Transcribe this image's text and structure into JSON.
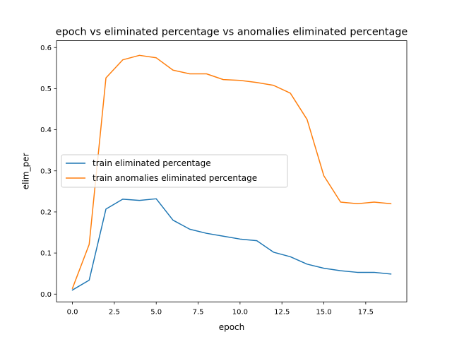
{
  "chart_data": {
    "type": "line",
    "title": "epoch vs eliminated percentage vs anomalies eliminated percentage",
    "xlabel": "epoch",
    "ylabel": "elim_per",
    "xlim": [
      -0.95,
      19.95
    ],
    "ylim": [
      -0.0188,
      0.6166
    ],
    "xticks": [
      0.0,
      2.5,
      5.0,
      7.5,
      10.0,
      12.5,
      15.0,
      17.5
    ],
    "xtick_labels": [
      "0.0",
      "2.5",
      "5.0",
      "7.5",
      "10.0",
      "12.5",
      "15.0",
      "17.5"
    ],
    "yticks": [
      0.0,
      0.1,
      0.2,
      0.3,
      0.4,
      0.5,
      0.6
    ],
    "ytick_labels": [
      "0.0",
      "0.1",
      "0.2",
      "0.3",
      "0.4",
      "0.5",
      "0.6"
    ],
    "grid": false,
    "legend_position": "center-left",
    "x": [
      0,
      1,
      2,
      3,
      4,
      5,
      6,
      7,
      8,
      9,
      10,
      11,
      12,
      13,
      14,
      15,
      16,
      17,
      18,
      19
    ],
    "series": [
      {
        "name": "train eliminated percentage",
        "color": "#1f77b4",
        "values": [
          0.01,
          0.034,
          0.207,
          0.231,
          0.228,
          0.232,
          0.18,
          0.158,
          0.148,
          0.141,
          0.134,
          0.13,
          0.102,
          0.091,
          0.073,
          0.063,
          0.057,
          0.053,
          0.053,
          0.049
        ]
      },
      {
        "name": "train anomalies eliminated percentage",
        "color": "#ff7f0e",
        "values": [
          0.014,
          0.121,
          0.526,
          0.57,
          0.581,
          0.575,
          0.545,
          0.536,
          0.536,
          0.522,
          0.52,
          0.515,
          0.508,
          0.489,
          0.425,
          0.288,
          0.224,
          0.22,
          0.224,
          0.22
        ]
      }
    ]
  }
}
